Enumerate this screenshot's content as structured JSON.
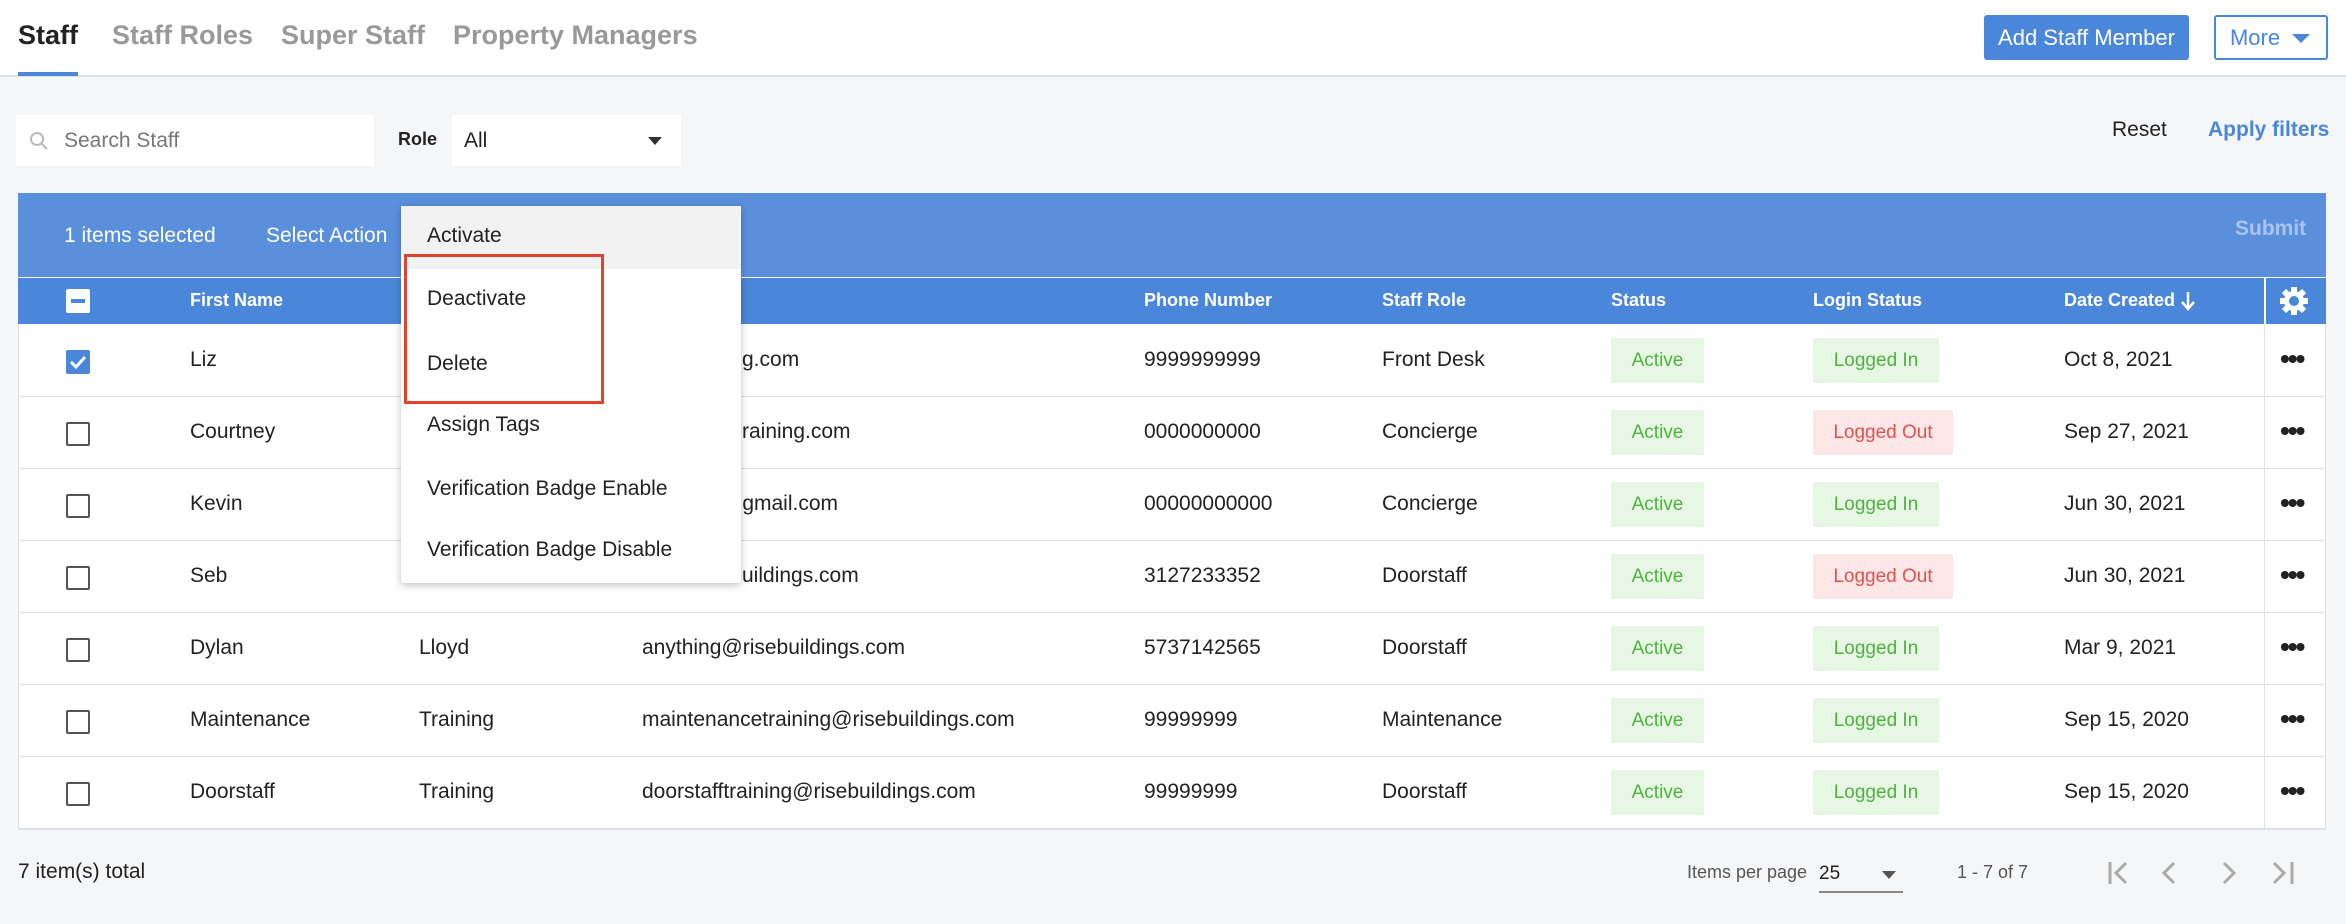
{
  "tabs": [
    "Staff",
    "Staff Roles",
    "Super Staff",
    "Property Managers"
  ],
  "buttons": {
    "add": "Add Staff Member",
    "more": "More"
  },
  "filters": {
    "search_placeholder": "Search Staff",
    "role_label": "Role",
    "role_value": "All",
    "reset": "Reset",
    "apply": "Apply filters"
  },
  "bulk_bar": {
    "selected": "1 items selected",
    "select_action": "Select Action",
    "submit": "Submit"
  },
  "table": {
    "columns": [
      "First Name",
      "Phone Number",
      "Staff Role",
      "Status",
      "Login Status",
      "Date Created"
    ],
    "rows": [
      {
        "checked": true,
        "first": "Liz",
        "email": "g.com",
        "phone": "9999999999",
        "role": "Front Desk",
        "status": "Active",
        "login": "Logged In",
        "date": "Oct 8, 2021"
      },
      {
        "checked": false,
        "first": "Courtney",
        "email": "raining.com",
        "phone": "0000000000",
        "role": "Concierge",
        "status": "Active",
        "login": "Logged Out",
        "date": "Sep 27, 2021"
      },
      {
        "checked": false,
        "first": "Kevin",
        "email": "@gmail.com",
        "phone": "00000000000",
        "role": "Concierge",
        "status": "Active",
        "login": "Logged In",
        "date": "Jun 30, 2021"
      },
      {
        "checked": false,
        "first": "Seb",
        "email": "uildings.com",
        "phone": "3127233352",
        "role": "Doorstaff",
        "status": "Active",
        "login": "Logged Out",
        "date": "Jun 30, 2021"
      },
      {
        "checked": false,
        "first": "Dylan",
        "last": "Lloyd",
        "email": "anything@risebuildings.com",
        "phone": "5737142565",
        "role": "Doorstaff",
        "status": "Active",
        "login": "Logged In",
        "date": "Mar 9, 2021"
      },
      {
        "checked": false,
        "first": "Maintenance",
        "last": "Training",
        "email": "maintenancetraining@risebuildings.com",
        "phone": "99999999",
        "role": "Maintenance",
        "status": "Active",
        "login": "Logged In",
        "date": "Sep 15, 2020"
      },
      {
        "checked": false,
        "first": "Doorstaff",
        "last": "Training",
        "email": "doorstafftraining@risebuildings.com",
        "phone": "99999999",
        "role": "Doorstaff",
        "status": "Active",
        "login": "Logged In",
        "date": "Sep 15, 2020"
      }
    ]
  },
  "menu": {
    "items": [
      "Activate",
      "Deactivate",
      "Delete",
      "Assign Tags",
      "Verification Badge Enable",
      "Verification Badge Disable"
    ]
  },
  "footer": {
    "total": "7 item(s) total",
    "per_page_label": "Items per page",
    "per_page": "25",
    "range": "1 - 7 of 7"
  }
}
